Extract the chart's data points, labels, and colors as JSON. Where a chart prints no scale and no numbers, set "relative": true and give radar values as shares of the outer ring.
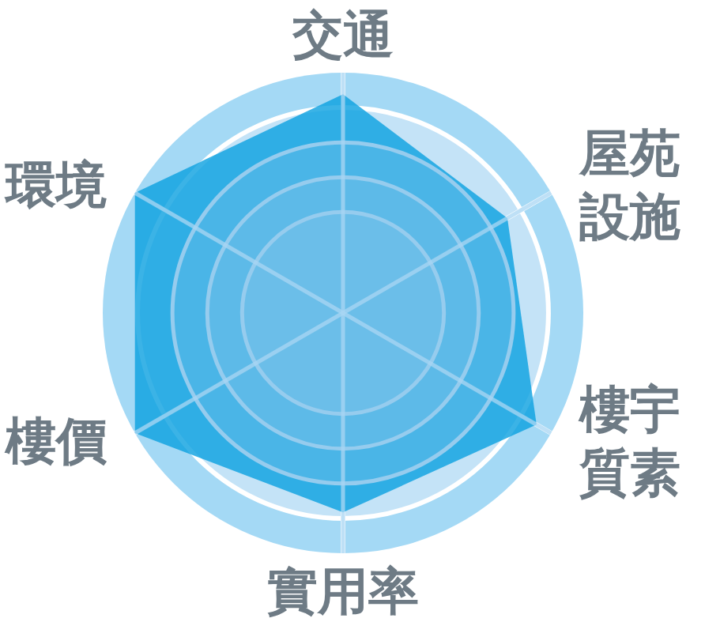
{
  "chart_data": {
    "type": "radar",
    "categories": [
      "交通",
      "屋苑設施",
      "樓宇質素",
      "實用率",
      "樓價",
      "環境"
    ],
    "relative": true,
    "grid": true,
    "series": [
      {
        "color": "#0aa0e0",
        "values": [
          0.91,
          0.79,
          0.93,
          0.83,
          1.0,
          1.0
        ]
      }
    ]
  }
}
